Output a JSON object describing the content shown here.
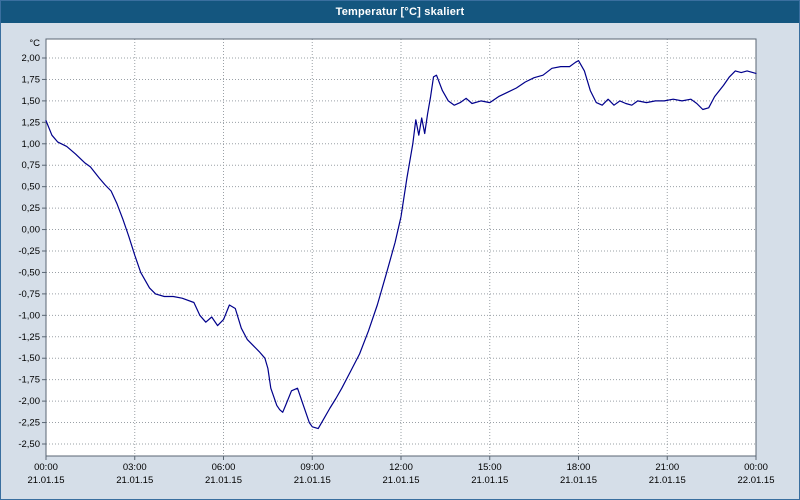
{
  "window": {
    "title": "Temperatur [°C] skaliert"
  },
  "chart_data": {
    "type": "line",
    "title": "Temperatur [°C] skaliert",
    "ylabel": "°C",
    "xlabel": "",
    "ylim": [
      -2.5,
      2.0
    ],
    "ytick_step": 0.25,
    "x_range_hours": [
      0,
      24
    ],
    "grid": true,
    "legend": "none",
    "plot_bg": "#ffffff",
    "grid_color": "#9aa0a6",
    "frame_color": "#5a6673",
    "line_color": "#00008b",
    "yticks": [
      {
        "v": 2.0,
        "label": "2,00"
      },
      {
        "v": 1.75,
        "label": "1,75"
      },
      {
        "v": 1.5,
        "label": "1,50"
      },
      {
        "v": 1.25,
        "label": "1,25"
      },
      {
        "v": 1.0,
        "label": "1,00"
      },
      {
        "v": 0.75,
        "label": "0,75"
      },
      {
        "v": 0.5,
        "label": "0,50"
      },
      {
        "v": 0.25,
        "label": "0,25"
      },
      {
        "v": 0.0,
        "label": "0,00"
      },
      {
        "v": -0.25,
        "label": "-0,25"
      },
      {
        "v": -0.5,
        "label": "-0,50"
      },
      {
        "v": -0.75,
        "label": "-0,75"
      },
      {
        "v": -1.0,
        "label": "-1,00"
      },
      {
        "v": -1.25,
        "label": "-1,25"
      },
      {
        "v": -1.5,
        "label": "-1,50"
      },
      {
        "v": -1.75,
        "label": "-1,75"
      },
      {
        "v": -2.0,
        "label": "-2,00"
      },
      {
        "v": -2.25,
        "label": "-2,25"
      },
      {
        "v": -2.5,
        "label": "-2,50"
      }
    ],
    "xticks": [
      {
        "hour": 0,
        "time": "00:00",
        "date": "21.01.15"
      },
      {
        "hour": 3,
        "time": "03:00",
        "date": "21.01.15"
      },
      {
        "hour": 6,
        "time": "06:00",
        "date": "21.01.15"
      },
      {
        "hour": 9,
        "time": "09:00",
        "date": "21.01.15"
      },
      {
        "hour": 12,
        "time": "12:00",
        "date": "21.01.15"
      },
      {
        "hour": 15,
        "time": "15:00",
        "date": "21.01.15"
      },
      {
        "hour": 18,
        "time": "18:00",
        "date": "21.01.15"
      },
      {
        "hour": 21,
        "time": "21:00",
        "date": "21.01.15"
      },
      {
        "hour": 24,
        "time": "00:00",
        "date": "22.01.15"
      }
    ],
    "series": [
      {
        "name": "Temperatur [°C] skaliert",
        "x": [
          0,
          0.2,
          0.4,
          0.7,
          1.0,
          1.3,
          1.5,
          1.8,
          2.0,
          2.2,
          2.4,
          2.6,
          2.8,
          3.0,
          3.2,
          3.5,
          3.7,
          4.0,
          4.3,
          4.6,
          5.0,
          5.2,
          5.4,
          5.6,
          5.8,
          6.0,
          6.2,
          6.4,
          6.6,
          6.8,
          7.0,
          7.2,
          7.4,
          7.5,
          7.6,
          7.8,
          7.9,
          8.0,
          8.1,
          8.3,
          8.5,
          8.7,
          8.9,
          9.0,
          9.2,
          9.4,
          9.6,
          9.8,
          10.0,
          10.3,
          10.6,
          10.9,
          11.2,
          11.5,
          11.8,
          12.0,
          12.2,
          12.4,
          12.5,
          12.6,
          12.7,
          12.8,
          12.9,
          13.0,
          13.1,
          13.2,
          13.4,
          13.6,
          13.8,
          14.0,
          14.2,
          14.4,
          14.7,
          15.0,
          15.3,
          15.6,
          15.9,
          16.2,
          16.5,
          16.8,
          17.1,
          17.4,
          17.7,
          17.9,
          18.0,
          18.2,
          18.4,
          18.6,
          18.8,
          19.0,
          19.2,
          19.4,
          19.6,
          19.8,
          20.0,
          20.3,
          20.6,
          20.9,
          21.2,
          21.5,
          21.8,
          22.0,
          22.2,
          22.4,
          22.6,
          22.9,
          23.1,
          23.3,
          23.5,
          23.7,
          24.0
        ],
        "y": [
          1.27,
          1.1,
          1.02,
          0.97,
          0.88,
          0.78,
          0.73,
          0.6,
          0.52,
          0.45,
          0.3,
          0.12,
          -0.08,
          -0.3,
          -0.5,
          -0.68,
          -0.75,
          -0.78,
          -0.78,
          -0.8,
          -0.85,
          -1.0,
          -1.08,
          -1.02,
          -1.12,
          -1.05,
          -0.88,
          -0.92,
          -1.15,
          -1.28,
          -1.35,
          -1.42,
          -1.5,
          -1.62,
          -1.85,
          -2.05,
          -2.1,
          -2.13,
          -2.05,
          -1.88,
          -1.85,
          -2.05,
          -2.25,
          -2.3,
          -2.32,
          -2.2,
          -2.08,
          -1.97,
          -1.85,
          -1.65,
          -1.45,
          -1.18,
          -0.88,
          -0.52,
          -0.15,
          0.15,
          0.6,
          1.0,
          1.28,
          1.1,
          1.3,
          1.12,
          1.35,
          1.55,
          1.78,
          1.8,
          1.62,
          1.5,
          1.45,
          1.48,
          1.53,
          1.47,
          1.5,
          1.48,
          1.55,
          1.6,
          1.65,
          1.72,
          1.77,
          1.8,
          1.88,
          1.9,
          1.9,
          1.95,
          1.97,
          1.85,
          1.62,
          1.48,
          1.45,
          1.52,
          1.45,
          1.5,
          1.47,
          1.45,
          1.5,
          1.48,
          1.5,
          1.5,
          1.52,
          1.5,
          1.52,
          1.47,
          1.4,
          1.42,
          1.55,
          1.68,
          1.78,
          1.85,
          1.83,
          1.85,
          1.82
        ]
      }
    ]
  }
}
